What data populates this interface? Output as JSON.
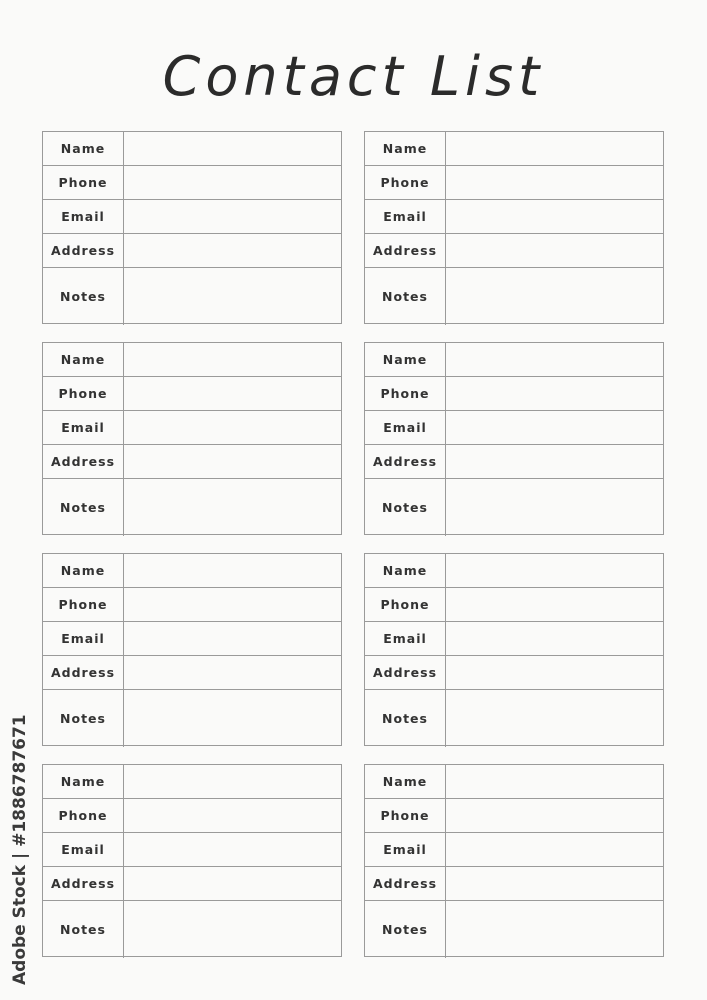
{
  "title": "Contact List",
  "field_labels": [
    "Name",
    "Phone",
    "Email",
    "Address",
    "Notes"
  ],
  "cards_count_note": null,
  "watermark": "Adobe Stock | #1886787671",
  "colors": {
    "text": "#2b2b2b",
    "border": "#9a9a9a",
    "background": "#fafaf9"
  }
}
